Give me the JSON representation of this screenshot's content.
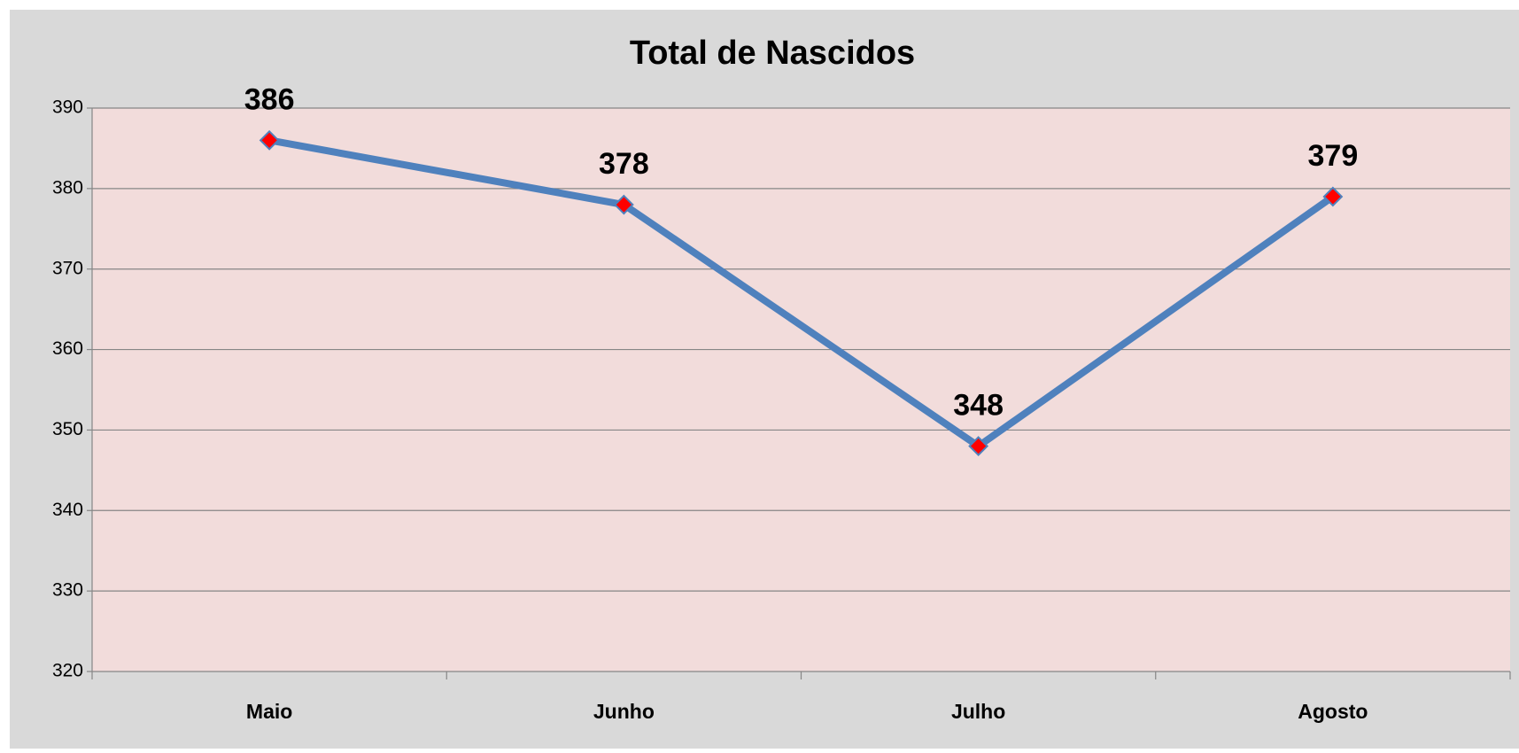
{
  "chart_data": {
    "type": "line",
    "title": "Total de Nascidos",
    "categories": [
      "Maio",
      "Junho",
      "Julho",
      "Agosto"
    ],
    "values": [
      386,
      378,
      348,
      379
    ],
    "color": "#4f81bd",
    "marker_color": "#ff0000",
    "ylim": [
      320,
      390
    ],
    "yticks": [
      320,
      330,
      340,
      350,
      360,
      370,
      380,
      390
    ],
    "grid": true
  }
}
